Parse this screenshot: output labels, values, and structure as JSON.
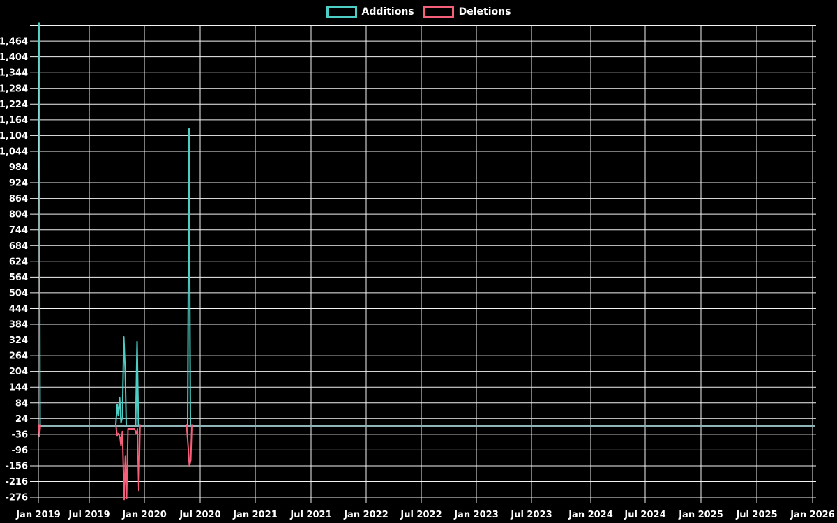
{
  "page": {
    "background_color": "#000000",
    "text_color": "#ffffff",
    "grid_color": "#f2f2f2"
  },
  "legend": {
    "items": [
      {
        "label": "Additions",
        "color": "#4ecdc4"
      },
      {
        "label": "Deletions",
        "color": "#f4607a"
      }
    ]
  },
  "chart_data": {
    "type": "line",
    "title": "",
    "xlabel": "",
    "ylabel": "",
    "legend_position": "top-center",
    "grid": true,
    "x_axis": {
      "tick_labels": [
        "Jan 2019",
        "Jul 2019",
        "Jan 2020",
        "Jul 2020",
        "Jan 2021",
        "Jul 2021",
        "Jan 2022",
        "Jul 2022",
        "Jan 2023",
        "Jul 2023",
        "Jan 2024",
        "Jul 2024",
        "Jan 2025",
        "Jul 2025",
        "Jan 2026"
      ]
    },
    "y_axis": {
      "tick_labels": [
        "1,464",
        "1,404",
        "1,344",
        "1,284",
        "1,224",
        "1,164",
        "1,104",
        "1,044",
        "984",
        "924",
        "864",
        "804",
        "744",
        "684",
        "624",
        "564",
        "504",
        "444",
        "384",
        "324",
        "264",
        "204",
        "144",
        "84",
        "24",
        "-36",
        "-96",
        "-156",
        "-216",
        "-276"
      ],
      "tick_values": [
        1464,
        1404,
        1344,
        1284,
        1224,
        1164,
        1104,
        1044,
        984,
        924,
        864,
        804,
        744,
        684,
        624,
        564,
        504,
        444,
        384,
        324,
        264,
        204,
        144,
        84,
        24,
        -36,
        -96,
        -156,
        -216,
        -276
      ],
      "step": 60,
      "unlabeled_top_gridline_value": 1524,
      "axis_bottom_value": -300
    },
    "overlap_line": {
      "color": "#8fb3b6",
      "value": 0,
      "note": "Both series sit at ~0 across the whole range; overlapping lines render as a single blue-grey line"
    },
    "series": [
      {
        "name": "Additions",
        "color": "#4ecdc4",
        "baseline_value": 0,
        "segments": [
          [
            [
              56,
              1533
            ],
            [
              57.5,
              0
            ]
          ],
          [
            [
              166,
              0
            ],
            [
              168,
              78
            ],
            [
              169.5,
              35
            ],
            [
              171.5,
              105
            ],
            [
              173.5,
              8
            ],
            [
              175.5,
              30
            ],
            [
              177.5,
              336
            ],
            [
              179.5,
              205
            ],
            [
              181,
              0
            ]
          ],
          [
            [
              194.5,
              0
            ],
            [
              196.5,
              318
            ],
            [
              198.5,
              0
            ]
          ],
          [
            [
              269,
              0
            ],
            [
              271,
              1130
            ],
            [
              273,
              0
            ]
          ]
        ]
      },
      {
        "name": "Deletions",
        "color": "#f4607a",
        "baseline_value": 0,
        "segments": [
          [
            [
              55.5,
              0
            ],
            [
              56.5,
              -42
            ],
            [
              58,
              0
            ]
          ],
          [
            [
              166,
              0
            ],
            [
              168,
              -40
            ],
            [
              170,
              -33
            ],
            [
              172,
              -48
            ],
            [
              173.5,
              -80
            ],
            [
              175.5,
              -25
            ],
            [
              178,
              -285
            ],
            [
              179.8,
              -120
            ],
            [
              181.5,
              -280
            ],
            [
              183.5,
              -15
            ],
            [
              193,
              -15
            ],
            [
              195.5,
              -35
            ],
            [
              197,
              -15
            ],
            [
              199,
              -250
            ],
            [
              200.8,
              0
            ]
          ],
          [
            [
              267.5,
              0
            ],
            [
              268.7,
              -45
            ],
            [
              270,
              -92
            ],
            [
              271.5,
              -157
            ],
            [
              273.5,
              -135
            ],
            [
              275,
              0
            ]
          ]
        ]
      }
    ],
    "spike_summary": [
      {
        "series": "Additions",
        "approx_date": "Jan 2019",
        "value": 1530
      },
      {
        "series": "Deletions",
        "approx_date": "Jan 2019",
        "value": -42
      },
      {
        "series": "Additions",
        "approx_date": "Sep 2019",
        "value": 105
      },
      {
        "series": "Additions",
        "approx_date": "Oct 2019",
        "value": 336
      },
      {
        "series": "Deletions",
        "approx_date": "Oct 2019",
        "value": -285
      },
      {
        "series": "Additions",
        "approx_date": "Dec 2019",
        "value": 318
      },
      {
        "series": "Deletions",
        "approx_date": "Dec 2019",
        "value": -250
      },
      {
        "series": "Additions",
        "approx_date": "Jun 2020",
        "value": 1130
      },
      {
        "series": "Deletions",
        "approx_date": "Jun 2020",
        "value": -157
      }
    ]
  }
}
